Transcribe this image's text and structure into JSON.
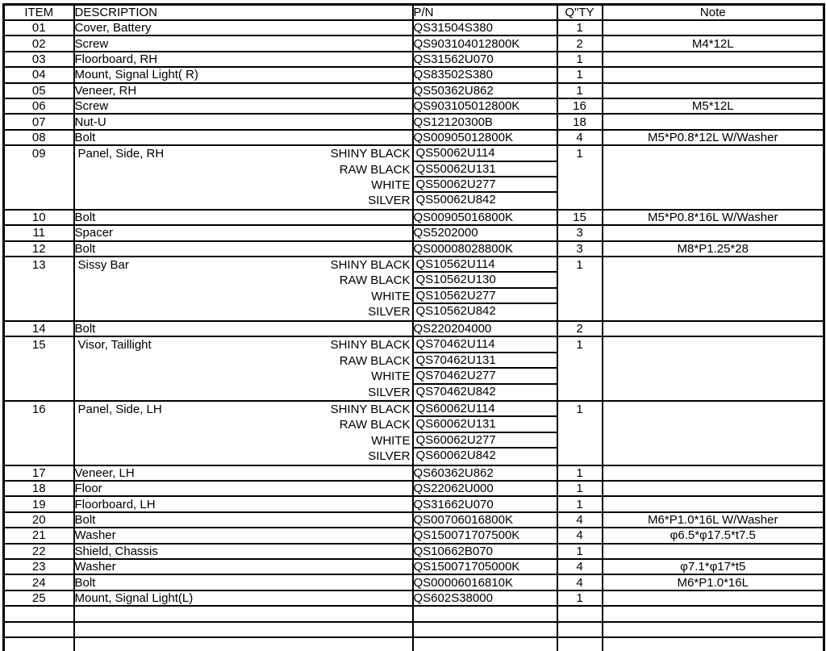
{
  "colors": {
    "border": "#000000",
    "background": "#ffffff",
    "text": "#000000"
  },
  "table": {
    "columns": [
      "ITEM",
      "DESCRIPTION",
      "P/N",
      "Q\"TY",
      "Note"
    ],
    "rows": [
      {
        "item": "01",
        "description": "Cover, Battery",
        "pn": "QS31504S380",
        "qty": "1",
        "note": ""
      },
      {
        "item": "02",
        "description": "Screw",
        "pn": "QS903104012800K",
        "qty": "2",
        "note": "M4*12L"
      },
      {
        "item": "03",
        "description": "Floorboard, RH",
        "pn": "QS31562U070",
        "qty": "1",
        "note": ""
      },
      {
        "item": "04",
        "description": "Mount, Signal Light( R)",
        "pn": "QS83502S380",
        "qty": "1",
        "note": ""
      },
      {
        "item": "05",
        "description": "Veneer, RH",
        "pn": "QS50362U862",
        "qty": "1",
        "note": ""
      },
      {
        "item": "06",
        "description": "Screw",
        "pn": "QS903105012800K",
        "qty": "16",
        "note": "M5*12L"
      },
      {
        "item": "07",
        "description": "Nut-U",
        "pn": "QS12120300B",
        "qty": "18",
        "note": ""
      },
      {
        "item": "08",
        "description": "Bolt",
        "pn": "QS00905012800K",
        "qty": "4",
        "note": "M5*P0.8*12L W/Washer"
      },
      {
        "item": "09",
        "description": "Panel, Side, RH",
        "qty": "1",
        "note": "",
        "variants": [
          {
            "color": "SHINY BLACK",
            "pn": "QS50062U114"
          },
          {
            "color": "RAW BLACK",
            "pn": "QS50062U131"
          },
          {
            "color": "WHITE",
            "pn": "QS50062U277"
          },
          {
            "color": "SILVER",
            "pn": "QS50062U842"
          }
        ]
      },
      {
        "item": "10",
        "description": "Bolt",
        "pn": "QS00905016800K",
        "qty": "15",
        "note": "M5*P0.8*16L W/Washer"
      },
      {
        "item": "11",
        "description": "Spacer",
        "pn": "QS5202000",
        "qty": "3",
        "note": ""
      },
      {
        "item": "12",
        "description": "Bolt",
        "pn": "QS00008028800K",
        "qty": "3",
        "note": "M8*P1.25*28"
      },
      {
        "item": "13",
        "description": "Sissy Bar",
        "qty": "1",
        "note": "",
        "variants": [
          {
            "color": "SHINY BLACK",
            "pn": "QS10562U114"
          },
          {
            "color": "RAW BLACK",
            "pn": "QS10562U130"
          },
          {
            "color": "WHITE",
            "pn": "QS10562U277"
          },
          {
            "color": "SILVER",
            "pn": "QS10562U842"
          }
        ]
      },
      {
        "item": "14",
        "description": "Bolt",
        "pn": "QS220204000",
        "qty": "2",
        "note": ""
      },
      {
        "item": "15",
        "description": "Visor, Taillight",
        "qty": "1",
        "note": "",
        "variants": [
          {
            "color": "SHINY BLACK",
            "pn": "QS70462U114"
          },
          {
            "color": "RAW BLACK",
            "pn": "QS70462U131"
          },
          {
            "color": "WHITE",
            "pn": "QS70462U277"
          },
          {
            "color": "SILVER",
            "pn": "QS70462U842"
          }
        ]
      },
      {
        "item": "16",
        "description": "Panel, Side, LH",
        "qty": "1",
        "note": "",
        "variants": [
          {
            "color": "SHINY BLACK",
            "pn": "QS60062U114"
          },
          {
            "color": "RAW BLACK",
            "pn": "QS60062U131"
          },
          {
            "color": "WHITE",
            "pn": "QS60062U277"
          },
          {
            "color": "SILVER",
            "pn": "QS60062U842"
          }
        ]
      },
      {
        "item": "17",
        "description": "Veneer, LH",
        "pn": "QS60362U862",
        "qty": "1",
        "note": ""
      },
      {
        "item": "18",
        "description": "Floor",
        "pn": "QS22062U000",
        "qty": "1",
        "note": ""
      },
      {
        "item": "19",
        "description": "Floorboard, LH",
        "pn": "QS31662U070",
        "qty": "1",
        "note": ""
      },
      {
        "item": "20",
        "description": "Bolt",
        "pn": "QS00706016800K",
        "qty": "4",
        "note": "M6*P1.0*16L W/Washer"
      },
      {
        "item": "21",
        "description": "Washer",
        "pn": "QS150071707500K",
        "qty": "4",
        "note": "φ6.5*φ17.5*t7.5"
      },
      {
        "item": "22",
        "description": "Shield, Chassis",
        "pn": "QS10662B070",
        "qty": "1",
        "note": ""
      },
      {
        "item": "23",
        "description": "Washer",
        "pn": "QS150071705000K",
        "qty": "4",
        "note": "φ7.1*φ17*t5"
      },
      {
        "item": "24",
        "description": "Bolt",
        "pn": "QS00006016810K",
        "qty": "4",
        "note": "M6*P1.0*16L"
      },
      {
        "item": "25",
        "description": "Mount, Signal Light(L)",
        "pn": "QS602S38000",
        "qty": "1",
        "note": ""
      },
      {
        "item": "",
        "description": "",
        "pn": "",
        "qty": "",
        "note": ""
      },
      {
        "item": "",
        "description": "",
        "pn": "",
        "qty": "",
        "note": ""
      },
      {
        "item": "",
        "description": "",
        "pn": "",
        "qty": "",
        "note": ""
      }
    ]
  }
}
